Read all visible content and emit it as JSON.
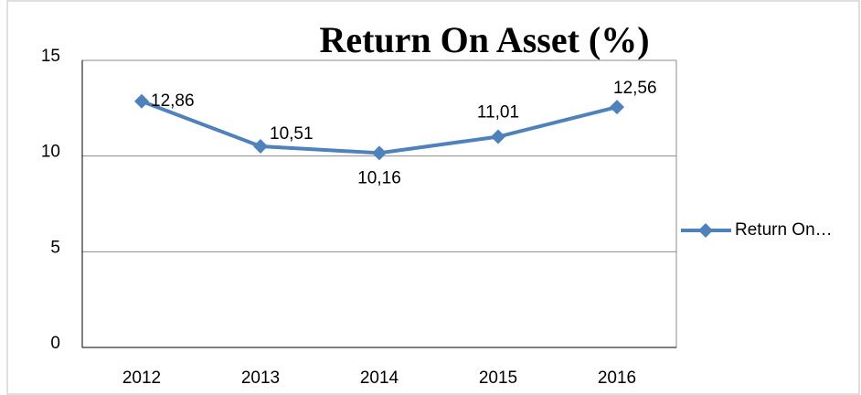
{
  "chart_data": {
    "type": "line",
    "title": "Return On Asset (%)",
    "categories": [
      "2012",
      "2013",
      "2014",
      "2015",
      "2016"
    ],
    "series": [
      {
        "name": "Return On…",
        "color": "#4f81bd",
        "values": [
          12.86,
          10.51,
          10.16,
          11.01,
          12.56
        ],
        "value_labels": [
          "12,86",
          "10,51",
          "10,16",
          "11,01",
          "12,56"
        ]
      }
    ],
    "ylim": [
      0,
      15
    ],
    "yticks": [
      0,
      5,
      10,
      15
    ],
    "grid": true,
    "legend": "right"
  }
}
